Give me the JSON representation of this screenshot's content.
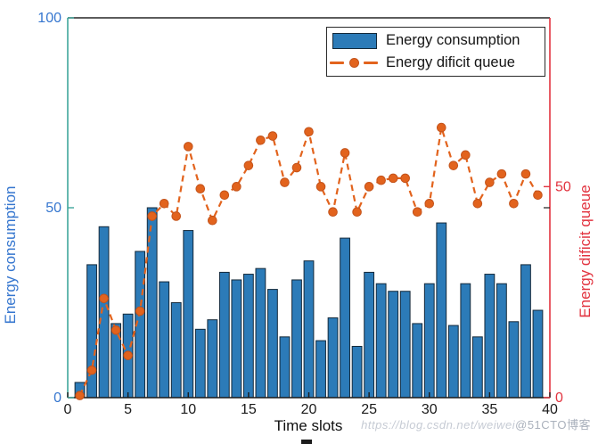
{
  "watermark": {
    "url_text": "https://blog.csdn.net/weiwei",
    "badge": "@51CTO博客"
  },
  "chart_data": {
    "type": "bar",
    "title": "",
    "xlabel": "Time slots",
    "ylabel_left": "Energy consumption",
    "ylabel_right": "Energy dificit queue",
    "xlim": [
      0,
      40
    ],
    "ylim_left": [
      0,
      100
    ],
    "ylim_right": [
      0,
      90
    ],
    "xticks": [
      0,
      5,
      10,
      15,
      20,
      25,
      30,
      35,
      40
    ],
    "yticks_left": [
      0,
      50,
      100
    ],
    "yticks_right": [
      0,
      50
    ],
    "grid": false,
    "legend_position": "top-right",
    "legend": [
      "Energy consumption",
      "Energy dificit queue"
    ],
    "x": [
      1,
      2,
      3,
      4,
      5,
      6,
      7,
      8,
      9,
      10,
      11,
      12,
      13,
      14,
      15,
      16,
      17,
      18,
      19,
      20,
      21,
      22,
      23,
      24,
      25,
      26,
      27,
      28,
      29,
      30,
      31,
      32,
      33,
      34,
      35,
      36,
      37,
      38,
      39
    ],
    "series": [
      {
        "name": "Energy consumption",
        "type": "bar",
        "axis": "left",
        "color": "#2c7bb8",
        "edge_color": "#14293a",
        "values": [
          4,
          35,
          45,
          19.5,
          22,
          38.5,
          50,
          30.5,
          25,
          44,
          18,
          20.5,
          33,
          31,
          32.5,
          34,
          28.5,
          16,
          31,
          36,
          15,
          21,
          42,
          13.5,
          33,
          30,
          28,
          28,
          19.5,
          30,
          46,
          19,
          30,
          16,
          32.5,
          30,
          20,
          35,
          23
        ]
      },
      {
        "name": "Energy dificit queue",
        "type": "line-dashed-circle",
        "axis": "right",
        "color": "#e2631d",
        "marker_edge_color": "#c3531b",
        "values": [
          0.5,
          6.5,
          23.5,
          16,
          10,
          20.5,
          43,
          46,
          43,
          59.5,
          49.5,
          42,
          48,
          50,
          55,
          61,
          62,
          51,
          54.5,
          63,
          50,
          44,
          58,
          44,
          50,
          51.5,
          52,
          52,
          44,
          46,
          64,
          55,
          57.5,
          46,
          51,
          53,
          46,
          53,
          48
        ]
      }
    ],
    "colors": {
      "left_axis_line": "#3fa69b",
      "left_tick_label": "#3576cf",
      "right_axis_line": "#e2333f",
      "right_tick_label": "#e2333f",
      "box_line": "#262626",
      "x_tick_label": "#1a1a1a"
    }
  }
}
